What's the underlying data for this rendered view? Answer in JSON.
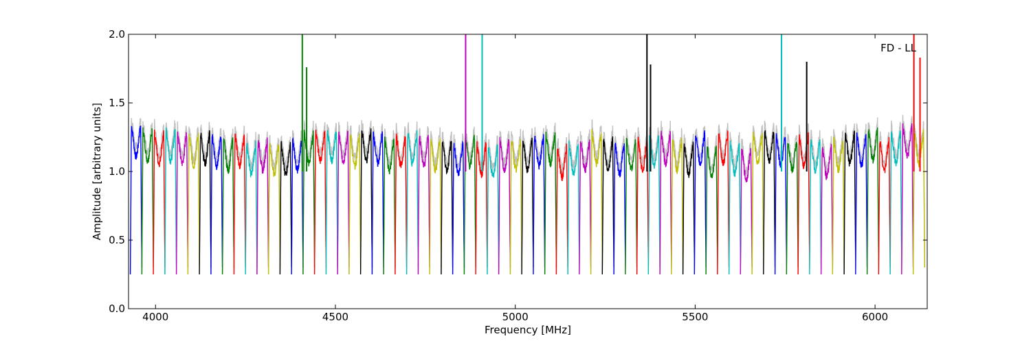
{
  "chart_data": {
    "type": "line",
    "title": "",
    "xlabel": "Frequency [MHz]",
    "ylabel": "Amplitude [arbitrary units]",
    "annotation": "FD - LL",
    "xlim": [
      3925,
      6145
    ],
    "ylim": [
      0.0,
      2.0
    ],
    "x_ticks": [
      4000,
      4500,
      5000,
      5500,
      6000
    ],
    "y_ticks": [
      0.0,
      0.5,
      1.0,
      1.5,
      2.0
    ],
    "x_tick_labels": [
      "4000",
      "4500",
      "5000",
      "5500",
      "6000"
    ],
    "y_tick_labels": [
      "0.0",
      "0.5",
      "1.0",
      "1.5",
      "2.0"
    ],
    "grid": false,
    "legend": "none",
    "channel_width_mhz": 32,
    "channel_start_mhz": 3930,
    "channel_count": 69,
    "color_cycle": [
      "#0000ff",
      "#008000",
      "#ff0000",
      "#00bfbf",
      "#bf00bf",
      "#bfbf00",
      "#000000"
    ],
    "reference_series_color": "#c0c0c0",
    "channel_levels": [
      1.25,
      1.22,
      1.2,
      1.22,
      1.2,
      1.18,
      1.2,
      1.18,
      1.15,
      1.18,
      1.12,
      1.15,
      1.12,
      1.12,
      1.15,
      1.2,
      1.22,
      1.22,
      1.2,
      1.18,
      1.22,
      1.2,
      1.15,
      1.18,
      1.2,
      1.18,
      1.15,
      1.15,
      1.12,
      1.18,
      1.12,
      1.1,
      1.15,
      1.15,
      1.15,
      1.18,
      1.2,
      1.1,
      1.12,
      1.15,
      1.2,
      1.15,
      1.12,
      1.15,
      1.15,
      1.18,
      1.2,
      1.15,
      1.12,
      1.2,
      1.1,
      1.2,
      1.12,
      1.08,
      1.2,
      1.22,
      1.18,
      1.15,
      1.18,
      1.15,
      1.1,
      1.15,
      1.2,
      1.18,
      1.22,
      1.15,
      1.2,
      1.25,
      1.2
    ],
    "spikes": [
      {
        "x": 4408,
        "y": 2.0,
        "color": "#008000"
      },
      {
        "x": 4420,
        "y": 1.76,
        "color": "#008000"
      },
      {
        "x": 4862,
        "y": 2.0,
        "color": "#bf00bf"
      },
      {
        "x": 4908,
        "y": 2.0,
        "color": "#00bfbf"
      },
      {
        "x": 5366,
        "y": 2.0,
        "color": "#000000"
      },
      {
        "x": 5376,
        "y": 1.78,
        "color": "#000000"
      },
      {
        "x": 5740,
        "y": 2.0,
        "color": "#00bfbf"
      },
      {
        "x": 5810,
        "y": 1.8,
        "color": "#000000"
      },
      {
        "x": 6108,
        "y": 2.0,
        "color": "#ff0000"
      },
      {
        "x": 6125,
        "y": 1.83,
        "color": "#ff0000"
      }
    ]
  }
}
